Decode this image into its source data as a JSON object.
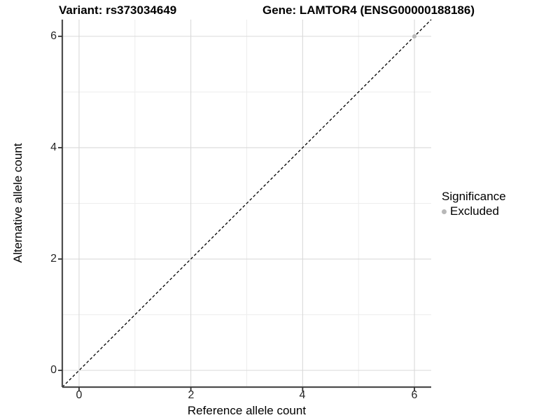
{
  "chart_data": {
    "type": "scatter",
    "title_left": "Variant: rs373034649",
    "title_right": "Gene: LAMTOR4 (ENSG00000188186)",
    "xlabel": "Reference allele count",
    "ylabel": "Alternative allele count",
    "xlim": [
      -0.3,
      6.3
    ],
    "ylim": [
      -0.3,
      6.3
    ],
    "x_ticks": [
      0,
      2,
      4,
      6
    ],
    "y_ticks": [
      0,
      2,
      4,
      6
    ],
    "x_tick_labels": [
      "0",
      "2",
      "4",
      "6"
    ],
    "y_tick_labels": [
      "0",
      "2",
      "4",
      "6"
    ],
    "x_minor_gridlines": [
      1,
      3,
      5
    ],
    "y_minor_gridlines": [
      1,
      3,
      5
    ],
    "grid": "major+minor",
    "identity_line": {
      "slope": 1,
      "intercept": 0,
      "style": "dashed",
      "color": "#000000"
    },
    "points": [
      {
        "x": 6,
        "y": 6,
        "significance": "Excluded"
      }
    ],
    "legend": {
      "title": "Significance",
      "position": "right",
      "items": [
        {
          "label": "Excluded",
          "color": "#b8b8b8",
          "marker": "circle"
        }
      ]
    },
    "colors": {
      "background": "#ffffff",
      "grid_major": "#d9d9d9",
      "grid_minor": "#ededed",
      "axis_line": "#4d4d4d",
      "tick_mark": "#333333",
      "point": "#b8b8b8"
    }
  }
}
